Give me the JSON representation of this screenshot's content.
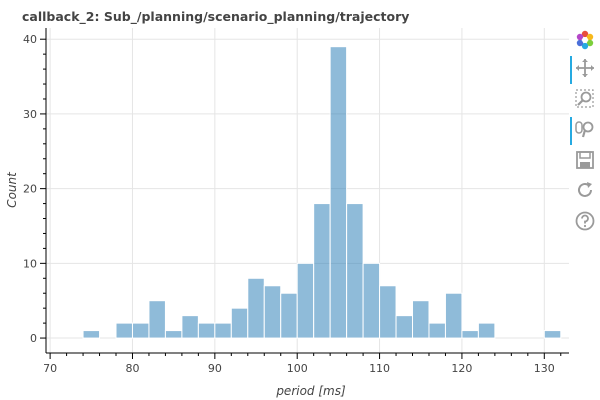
{
  "chart_data": {
    "type": "bar",
    "title": "callback_2: Sub_/planning/scenario_planning/trajectory",
    "xlabel": "period [ms]",
    "ylabel": "Count",
    "xlim": [
      69.5,
      133
    ],
    "ylim": [
      -2,
      41.5
    ],
    "xticks": [
      70,
      80,
      90,
      100,
      110,
      120,
      130
    ],
    "yticks": [
      0,
      10,
      20,
      30,
      40
    ],
    "grid": true,
    "bin_width": 2,
    "bins": [
      {
        "start": 74,
        "count": 1
      },
      {
        "start": 78,
        "count": 2
      },
      {
        "start": 80,
        "count": 2
      },
      {
        "start": 82,
        "count": 5
      },
      {
        "start": 84,
        "count": 1
      },
      {
        "start": 86,
        "count": 3
      },
      {
        "start": 88,
        "count": 2
      },
      {
        "start": 90,
        "count": 2
      },
      {
        "start": 92,
        "count": 4
      },
      {
        "start": 94,
        "count": 8
      },
      {
        "start": 96,
        "count": 7
      },
      {
        "start": 98,
        "count": 6
      },
      {
        "start": 100,
        "count": 10
      },
      {
        "start": 102,
        "count": 18
      },
      {
        "start": 104,
        "count": 39
      },
      {
        "start": 106,
        "count": 18
      },
      {
        "start": 108,
        "count": 10
      },
      {
        "start": 110,
        "count": 7
      },
      {
        "start": 112,
        "count": 3
      },
      {
        "start": 114,
        "count": 5
      },
      {
        "start": 116,
        "count": 2
      },
      {
        "start": 118,
        "count": 6
      },
      {
        "start": 120,
        "count": 1
      },
      {
        "start": 122,
        "count": 2
      },
      {
        "start": 130,
        "count": 1
      }
    ],
    "bar_color": "#1f77b4",
    "bar_alpha": 0.5
  },
  "toolbar": {
    "tools": [
      {
        "name": "bokeh-logo-icon",
        "active": false
      },
      {
        "name": "pan-icon",
        "active": true
      },
      {
        "name": "box-zoom-icon",
        "active": false
      },
      {
        "name": "wheel-zoom-icon",
        "active": true
      },
      {
        "name": "save-icon",
        "active": false
      },
      {
        "name": "reset-icon",
        "active": false
      },
      {
        "name": "help-icon",
        "active": false
      }
    ]
  }
}
